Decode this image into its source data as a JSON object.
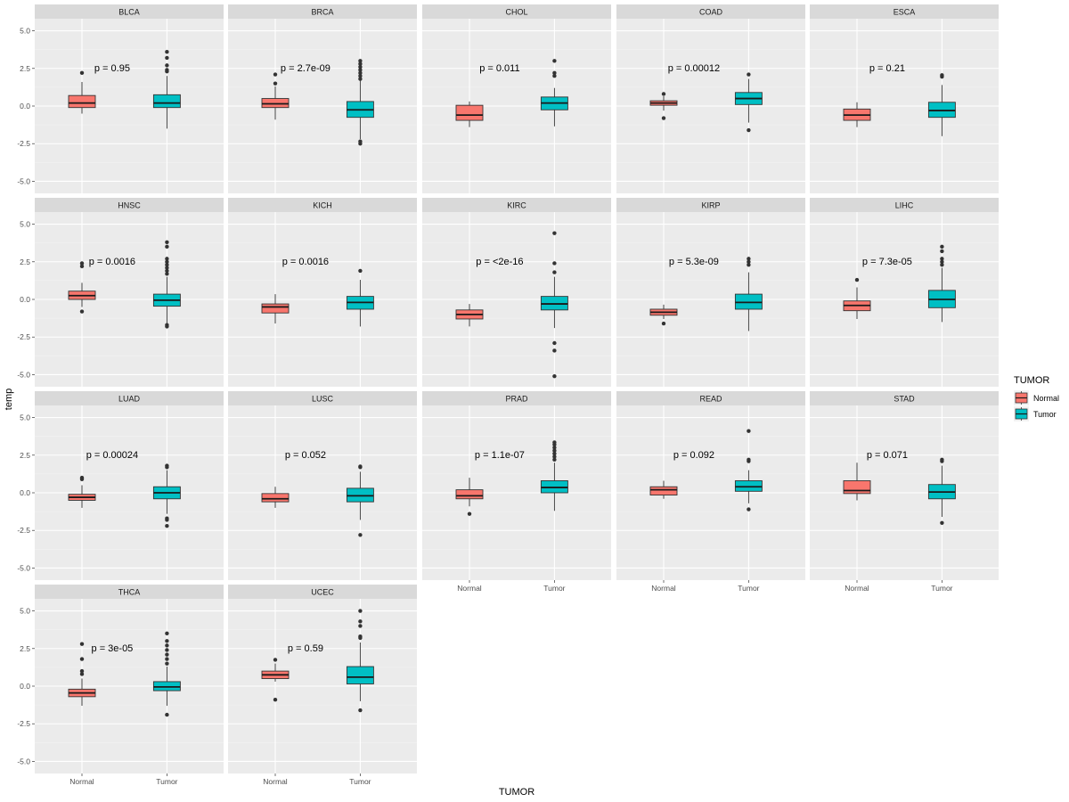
{
  "chart_data": {
    "type": "boxplot",
    "xlabel": "TUMOR",
    "ylabel": "temp",
    "ylim": [
      -5.8,
      5.8
    ],
    "y_ticks": [
      {
        "value": 5.0,
        "label": "5.0"
      },
      {
        "value": 2.5,
        "label": "2.5"
      },
      {
        "value": 0.0,
        "label": "0.0"
      },
      {
        "value": -2.5,
        "label": "-2.5"
      },
      {
        "value": -5.0,
        "label": "-5.0"
      }
    ],
    "categories": [
      "Normal",
      "Tumor"
    ],
    "legend": {
      "title": "TUMOR",
      "position": "right",
      "items": [
        {
          "label": "Normal",
          "color": "#F8766D"
        },
        {
          "label": "Tumor",
          "color": "#00BFC4"
        }
      ]
    },
    "panels": [
      {
        "name": "BLCA",
        "pvalue": "p = 0.95",
        "normal": {
          "q1": -0.1,
          "median": 0.2,
          "q3": 0.7,
          "low": -0.5,
          "high": 1.6,
          "outliers": [
            2.2
          ]
        },
        "tumor": {
          "q1": -0.1,
          "median": 0.2,
          "q3": 0.75,
          "low": -1.5,
          "high": 2.0,
          "outliers": [
            2.3,
            2.4,
            2.7,
            3.2,
            3.6
          ]
        }
      },
      {
        "name": "BRCA",
        "pvalue": "p = 2.7e-09",
        "normal": {
          "q1": -0.1,
          "median": 0.15,
          "q3": 0.5,
          "low": -0.9,
          "high": 1.3,
          "outliers": [
            1.5,
            2.1
          ]
        },
        "tumor": {
          "q1": -0.75,
          "median": -0.25,
          "q3": 0.3,
          "low": -2.2,
          "high": 1.7,
          "outliers": [
            1.8,
            2.0,
            2.2,
            2.4,
            2.6,
            2.8,
            3.0,
            -2.35,
            -2.5
          ]
        }
      },
      {
        "name": "CHOL",
        "pvalue": "p = 0.011",
        "normal": {
          "q1": -0.95,
          "median": -0.6,
          "q3": 0.05,
          "low": -1.4,
          "high": 0.3,
          "outliers": []
        },
        "tumor": {
          "q1": -0.25,
          "median": 0.2,
          "q3": 0.6,
          "low": -1.35,
          "high": 1.2,
          "outliers": [
            2.0,
            2.2,
            3.0
          ]
        }
      },
      {
        "name": "COAD",
        "pvalue": "p = 0.00012",
        "normal": {
          "q1": 0.05,
          "median": 0.2,
          "q3": 0.35,
          "low": -0.3,
          "high": 0.65,
          "outliers": [
            0.8,
            -0.8
          ]
        },
        "tumor": {
          "q1": 0.1,
          "median": 0.5,
          "q3": 0.9,
          "low": -1.1,
          "high": 1.8,
          "outliers": [
            2.1,
            -1.6
          ]
        }
      },
      {
        "name": "ESCA",
        "pvalue": "p = 0.21",
        "normal": {
          "q1": -0.95,
          "median": -0.6,
          "q3": -0.2,
          "low": -1.4,
          "high": 0.25,
          "outliers": []
        },
        "tumor": {
          "q1": -0.75,
          "median": -0.3,
          "q3": 0.25,
          "low": -2.0,
          "high": 1.4,
          "outliers": [
            1.95,
            2.05
          ]
        }
      },
      {
        "name": "HNSC",
        "pvalue": "p = 0.0016",
        "normal": {
          "q1": 0.0,
          "median": 0.25,
          "q3": 0.55,
          "low": -0.5,
          "high": 1.1,
          "outliers": [
            2.2,
            2.4,
            -0.8
          ]
        },
        "tumor": {
          "q1": -0.45,
          "median": -0.05,
          "q3": 0.35,
          "low": -1.6,
          "high": 1.5,
          "outliers": [
            1.7,
            1.9,
            2.1,
            2.3,
            2.5,
            2.7,
            3.5,
            3.8,
            -1.7,
            -1.8
          ]
        }
      },
      {
        "name": "KICH",
        "pvalue": "p = 0.0016",
        "normal": {
          "q1": -0.9,
          "median": -0.5,
          "q3": -0.3,
          "low": -1.6,
          "high": 0.35,
          "outliers": []
        },
        "tumor": {
          "q1": -0.65,
          "median": -0.2,
          "q3": 0.2,
          "low": -1.8,
          "high": 1.3,
          "outliers": [
            1.9
          ]
        }
      },
      {
        "name": "KIRC",
        "pvalue": "p = <2e-16",
        "normal": {
          "q1": -1.3,
          "median": -1.0,
          "q3": -0.7,
          "low": -1.8,
          "high": -0.3,
          "outliers": []
        },
        "tumor": {
          "q1": -0.7,
          "median": -0.3,
          "q3": 0.2,
          "low": -1.9,
          "high": 1.5,
          "outliers": [
            1.8,
            2.4,
            4.4,
            -2.9,
            -3.4,
            -5.1
          ]
        }
      },
      {
        "name": "KIRP",
        "pvalue": "p = 5.3e-09",
        "normal": {
          "q1": -1.05,
          "median": -0.85,
          "q3": -0.65,
          "low": -1.3,
          "high": -0.35,
          "outliers": [
            -1.6
          ]
        },
        "tumor": {
          "q1": -0.65,
          "median": -0.2,
          "q3": 0.35,
          "low": -2.1,
          "high": 1.8,
          "outliers": [
            2.3,
            2.5,
            2.7
          ]
        }
      },
      {
        "name": "LIHC",
        "pvalue": "p = 7.3e-05",
        "normal": {
          "q1": -0.75,
          "median": -0.4,
          "q3": -0.1,
          "low": -1.3,
          "high": 0.8,
          "outliers": [
            1.3
          ]
        },
        "tumor": {
          "q1": -0.55,
          "median": 0.0,
          "q3": 0.6,
          "low": -1.5,
          "high": 2.1,
          "outliers": [
            2.3,
            2.5,
            2.7,
            3.2,
            3.5
          ]
        }
      },
      {
        "name": "LUAD",
        "pvalue": "p = 0.00024",
        "normal": {
          "q1": -0.5,
          "median": -0.3,
          "q3": -0.1,
          "low": -1.0,
          "high": 0.5,
          "outliers": [
            0.9,
            1.0
          ]
        },
        "tumor": {
          "q1": -0.4,
          "median": 0.0,
          "q3": 0.4,
          "low": -1.4,
          "high": 1.5,
          "outliers": [
            1.7,
            1.8,
            -1.7,
            -1.8,
            -2.2
          ]
        }
      },
      {
        "name": "LUSC",
        "pvalue": "p = 0.052",
        "normal": {
          "q1": -0.6,
          "median": -0.4,
          "q3": -0.05,
          "low": -1.0,
          "high": 0.4,
          "outliers": []
        },
        "tumor": {
          "q1": -0.6,
          "median": -0.2,
          "q3": 0.3,
          "low": -1.8,
          "high": 1.4,
          "outliers": [
            1.7,
            1.75,
            -2.8
          ]
        }
      },
      {
        "name": "PRAD",
        "pvalue": "p = 1.1e-07",
        "normal": {
          "q1": -0.4,
          "median": -0.2,
          "q3": 0.2,
          "low": -0.9,
          "high": 1.0,
          "outliers": [
            -1.4
          ]
        },
        "tumor": {
          "q1": 0.0,
          "median": 0.35,
          "q3": 0.8,
          "low": -1.2,
          "high": 2.0,
          "outliers": [
            2.2,
            2.4,
            2.6,
            2.8,
            3.0,
            3.2,
            3.35
          ]
        }
      },
      {
        "name": "READ",
        "pvalue": "p = 0.092",
        "normal": {
          "q1": -0.15,
          "median": 0.2,
          "q3": 0.4,
          "low": -0.4,
          "high": 0.8,
          "outliers": []
        },
        "tumor": {
          "q1": 0.1,
          "median": 0.4,
          "q3": 0.8,
          "low": -0.7,
          "high": 1.5,
          "outliers": [
            2.1,
            2.2,
            4.1,
            -1.1
          ]
        }
      },
      {
        "name": "STAD",
        "pvalue": "p = 0.071",
        "normal": {
          "q1": -0.05,
          "median": 0.15,
          "q3": 0.8,
          "low": -0.5,
          "high": 2.0,
          "outliers": []
        },
        "tumor": {
          "q1": -0.4,
          "median": 0.05,
          "q3": 0.55,
          "low": -1.6,
          "high": 1.8,
          "outliers": [
            2.1,
            2.2,
            -2.0
          ]
        }
      },
      {
        "name": "THCA",
        "pvalue": "p = 3e-05",
        "normal": {
          "q1": -0.7,
          "median": -0.45,
          "q3": -0.2,
          "low": -1.3,
          "high": 0.5,
          "outliers": [
            0.8,
            1.0,
            1.8,
            2.8
          ]
        },
        "tumor": {
          "q1": -0.3,
          "median": -0.05,
          "q3": 0.3,
          "low": -1.3,
          "high": 1.3,
          "outliers": [
            1.5,
            1.8,
            2.1,
            2.4,
            2.7,
            3.0,
            3.5,
            -1.9
          ]
        }
      },
      {
        "name": "UCEC",
        "pvalue": "p = 0.59",
        "normal": {
          "q1": 0.5,
          "median": 0.75,
          "q3": 1.0,
          "low": 0.3,
          "high": 1.5,
          "outliers": [
            1.75,
            -0.9
          ]
        },
        "tumor": {
          "q1": 0.15,
          "median": 0.6,
          "q3": 1.3,
          "low": -1.0,
          "high": 2.9,
          "outliers": [
            3.2,
            3.3,
            4.0,
            4.3,
            5.0,
            -1.6
          ]
        }
      }
    ]
  }
}
